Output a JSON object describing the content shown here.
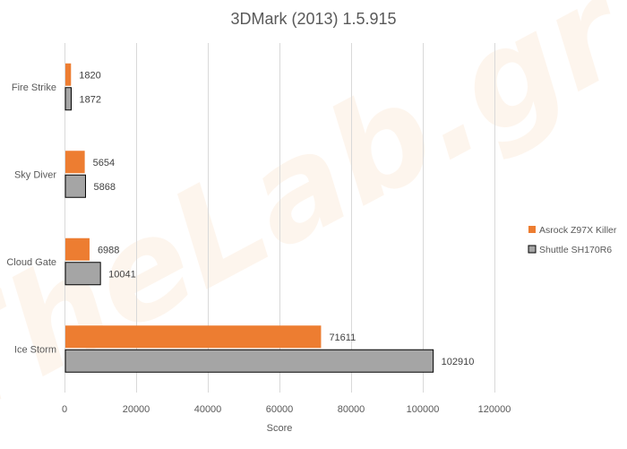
{
  "chart_data": {
    "type": "bar",
    "orientation": "horizontal",
    "title": "3DMark (2013) 1.5.915",
    "xlabel": "Score",
    "ylabel": "",
    "categories": [
      "Fire Strike",
      "Sky Diver",
      "Cloud Gate",
      "Ice Storm"
    ],
    "series": [
      {
        "name": "Asrock Z97X Killer",
        "color": "#ed7d31",
        "values": [
          1820,
          5654,
          6988,
          71611
        ]
      },
      {
        "name": "Shuttle SH170R6",
        "color": "#a5a5a5",
        "values": [
          1872,
          5868,
          10041,
          102910
        ]
      }
    ],
    "xlim": [
      0,
      120000
    ],
    "xticks": [
      0,
      20000,
      40000,
      60000,
      80000,
      100000,
      120000
    ],
    "grid": true,
    "legend_position": "right",
    "data_labels": true,
    "watermark": "TheLab.gr"
  }
}
